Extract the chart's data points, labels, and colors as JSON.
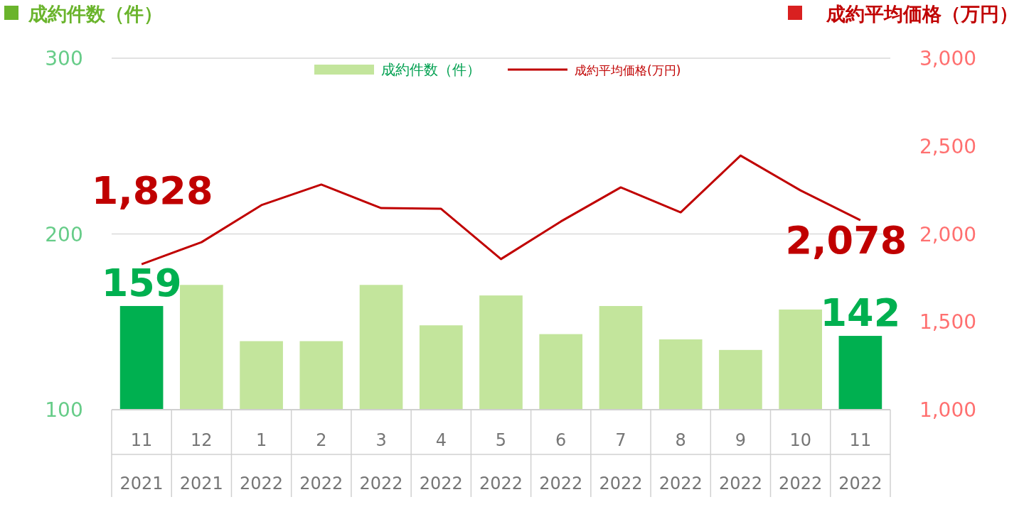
{
  "chart_data": {
    "type": "bar",
    "ylabel": "成約件数（件）",
    "y2label": "成約平均価格（万円）",
    "categories": [
      "11 2021",
      "12 2021",
      "1 2022",
      "2 2022",
      "3 2022",
      "4 2022",
      "5 2022",
      "6 2022",
      "7 2022",
      "8 2022",
      "9 2022",
      "10 2022",
      "11 2022"
    ],
    "series": [
      {
        "name": "成約件数（件）",
        "color": "#c3e59c",
        "colors": [
          "#00b050",
          "#c3e59c",
          "#c3e59c",
          "#c3e59c",
          "#c3e59c",
          "#c3e59c",
          "#c3e59c",
          "#c3e59c",
          "#c3e59c",
          "#c3e59c",
          "#c3e59c",
          "#c3e59c",
          "#00b050"
        ],
        "values": [
          159,
          171,
          139,
          139,
          171,
          148,
          165,
          143,
          159,
          140,
          134,
          157,
          142
        ],
        "value_labels": [
          "159",
          null,
          null,
          null,
          null,
          null,
          null,
          null,
          null,
          null,
          null,
          null,
          "142"
        ]
      },
      {
        "name": "成約平均価格(万円)",
        "type": "line",
        "axis": "y2",
        "color": "#c00000",
        "values": [
          1828,
          1953,
          2164,
          2281,
          2147,
          2143,
          1857,
          2071,
          2265,
          2123,
          2446,
          2248,
          2078
        ],
        "value_labels": [
          "1,828",
          null,
          null,
          null,
          null,
          null,
          null,
          null,
          null,
          null,
          null,
          null,
          "2,078"
        ]
      }
    ],
    "ylim": [
      100,
      300
    ],
    "yticks": [
      100,
      200,
      300
    ],
    "y2lim": [
      1000,
      3000
    ],
    "y2ticks": [
      {
        "value": 1000,
        "label": "1,000"
      },
      {
        "value": 1500,
        "label": "1,500"
      },
      {
        "value": 2000,
        "label": "2,000"
      },
      {
        "value": 2500,
        "label": "2,500"
      },
      {
        "value": 3000,
        "label": "3,000"
      }
    ],
    "grid": "y",
    "legend": "top"
  }
}
